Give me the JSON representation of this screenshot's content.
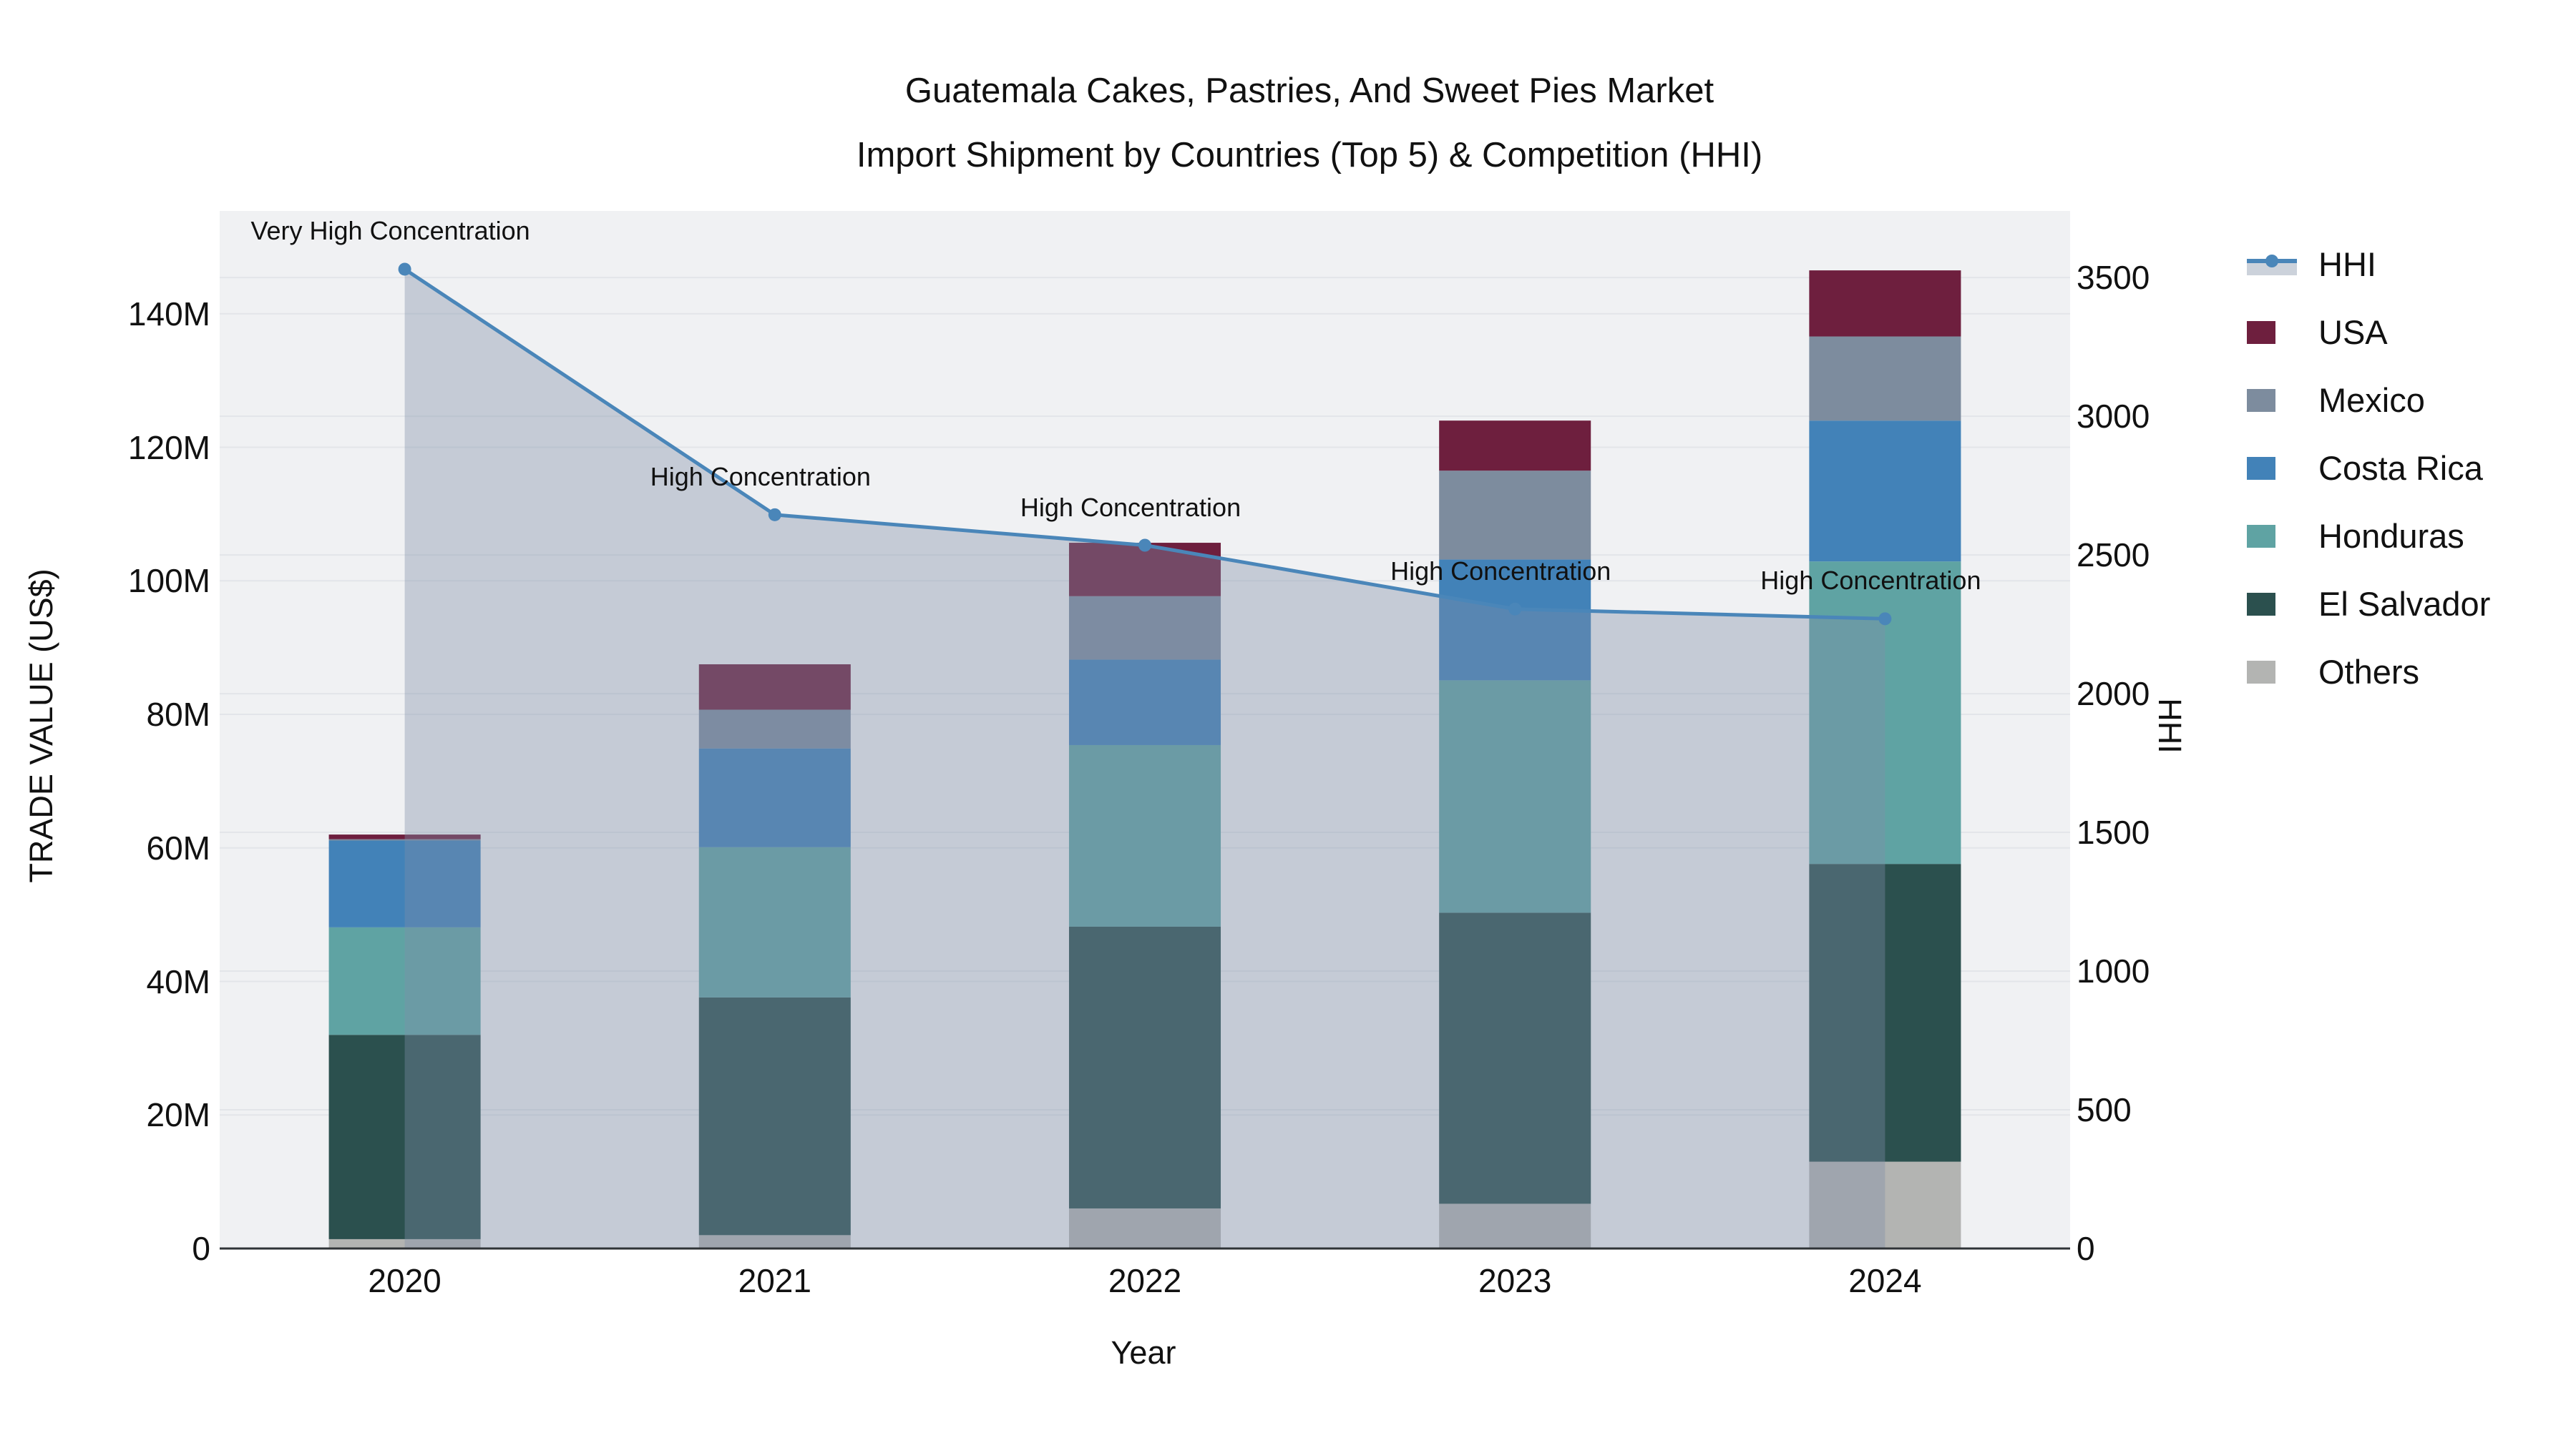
{
  "title": {
    "line1": "Guatemala Cakes, Pastries, And Sweet Pies Market",
    "line2": "Import Shipment by Countries (Top 5) & Competition (HHI)"
  },
  "axes": {
    "x": {
      "title": "Year"
    },
    "y_left": {
      "title": "TRADE VALUE (US$)",
      "ticks": [
        "0",
        "20M",
        "40M",
        "60M",
        "80M",
        "100M",
        "120M",
        "140M"
      ],
      "tick_values": [
        0,
        20,
        40,
        60,
        80,
        100,
        120,
        140
      ],
      "max": 155.4
    },
    "y_right": {
      "title": "HHI",
      "ticks": [
        "0",
        "500",
        "1000",
        "1500",
        "2000",
        "2500",
        "3000",
        "3500"
      ],
      "tick_values": [
        0,
        500,
        1000,
        1500,
        2000,
        2500,
        3000,
        3500
      ],
      "max": 3740
    }
  },
  "legend": [
    {
      "label": "HHI",
      "type": "line",
      "color": "#4a86b9"
    },
    {
      "label": "USA",
      "type": "swatch",
      "color": "#6e1f3e"
    },
    {
      "label": "Mexico",
      "type": "swatch",
      "color": "#7d8c9e"
    },
    {
      "label": "Costa Rica",
      "type": "swatch",
      "color": "#4282b8"
    },
    {
      "label": "Honduras",
      "type": "swatch",
      "color": "#5fa3a3"
    },
    {
      "label": "El Salvador",
      "type": "swatch",
      "color": "#2b504e"
    },
    {
      "label": "Others",
      "type": "swatch",
      "color": "#b3b4b2"
    }
  ],
  "chart_data": {
    "type": "bar+line",
    "title": "Guatemala Cakes, Pastries, And Sweet Pies Market Import Shipment by Countries (Top 5) & Competition (HHI)",
    "categories": [
      "2020",
      "2021",
      "2022",
      "2023",
      "2024"
    ],
    "bar_unit": "million US$ (trade value, left axis)",
    "series": [
      {
        "name": "USA",
        "type": "bar",
        "color": "#6e1f3e",
        "values": [
          0.7,
          6.8,
          8.0,
          7.5,
          9.9
        ]
      },
      {
        "name": "Mexico",
        "type": "bar",
        "color": "#7d8c9e",
        "values": [
          0.2,
          5.8,
          9.5,
          13.3,
          12.6
        ]
      },
      {
        "name": "Costa Rica",
        "type": "bar",
        "color": "#4282b8",
        "values": [
          13.0,
          14.8,
          12.8,
          18.1,
          21.1
        ]
      },
      {
        "name": "Honduras",
        "type": "bar",
        "color": "#5fa3a3",
        "values": [
          16.1,
          22.5,
          27.2,
          34.8,
          45.3
        ]
      },
      {
        "name": "El Salvador",
        "type": "bar",
        "color": "#2b504e",
        "values": [
          30.6,
          35.6,
          42.2,
          43.6,
          44.6
        ]
      },
      {
        "name": "Others",
        "type": "bar",
        "color": "#b3b4b2",
        "values": [
          1.4,
          2.0,
          6.0,
          6.7,
          13.0
        ]
      }
    ],
    "bar_totals": [
      62.0,
      87.5,
      105.7,
      124.0,
      146.5
    ],
    "stack_order_bottom_to_top": [
      "Others",
      "El Salvador",
      "Honduras",
      "Costa Rica",
      "Mexico",
      "USA"
    ],
    "line_series": {
      "name": "HHI",
      "axis": "y_right",
      "color": "#4a86b9",
      "area_fill_color": "rgba(127,143,168,0.38)",
      "values": [
        3530,
        2645,
        2535,
        2305,
        2270
      ]
    },
    "annotations": [
      {
        "x": "2020",
        "text": "Very High Concentration"
      },
      {
        "x": "2021",
        "text": "High Concentration"
      },
      {
        "x": "2022",
        "text": "High Concentration"
      },
      {
        "x": "2023",
        "text": "High Concentration"
      },
      {
        "x": "2024",
        "text": "High Concentration"
      }
    ],
    "xlabel": "Year",
    "ylabel_left": "TRADE VALUE (US$)",
    "ylabel_right": "HHI",
    "ylim_left": [
      0,
      155.4
    ],
    "ylim_right": [
      0,
      3740
    ],
    "grid": true,
    "legend_position": "right",
    "plot_bg": "#f0f1f3",
    "grid_color": "#e3e5e9",
    "axis_line_color": "#2f3337"
  }
}
